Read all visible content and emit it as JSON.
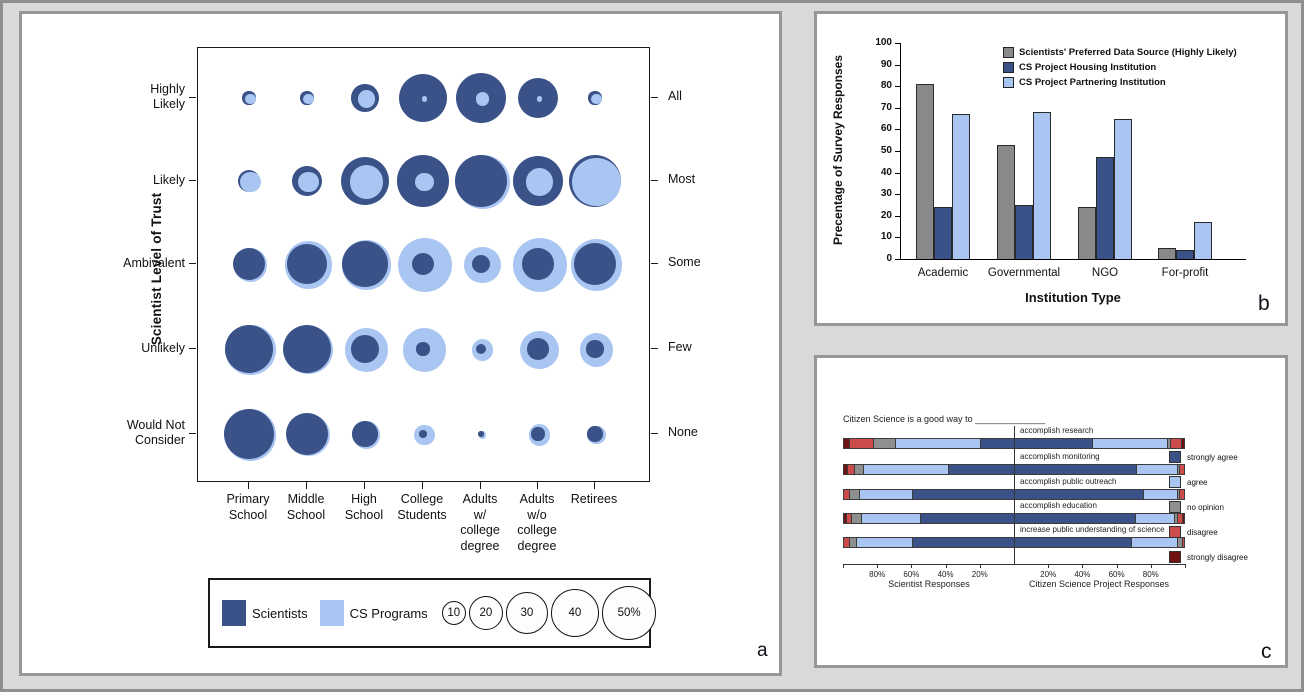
{
  "figure": {
    "background": "#d9d9d9",
    "frame_color": "#8f8f8f",
    "panel_border_color": "#979797",
    "panel_letters": {
      "a": "a",
      "b": "b",
      "c": "c"
    }
  },
  "chart_data": [
    {
      "id": "a",
      "type": "bubble",
      "ylabel": "Scientist Level of Trust",
      "x_categories": [
        "Primary School",
        "Middle School",
        "High School",
        "College Students",
        "Adults w/ college degree",
        "Adults w/o college degree",
        "Retirees"
      ],
      "x_category_lines": [
        [
          "Primary",
          "School"
        ],
        [
          "Middle",
          "School"
        ],
        [
          "High",
          "School"
        ],
        [
          "College",
          "Students"
        ],
        [
          "Adults",
          "w/",
          "college",
          "degree"
        ],
        [
          "Adults",
          "w/o",
          "college",
          "degree"
        ],
        [
          "Retirees"
        ]
      ],
      "y_categories": [
        "Highly Likely",
        "Likely",
        "Ambivalent",
        "Unlikely",
        "Would Not Consider"
      ],
      "y_category_lines": [
        [
          "Highly",
          "Likely"
        ],
        [
          "Likely"
        ],
        [
          "Ambivalent"
        ],
        [
          "Unlikely"
        ],
        [
          "Would Not",
          "Consider"
        ]
      ],
      "y_categories_right": [
        "All",
        "Most",
        "Some",
        "Few",
        "None"
      ],
      "bubble_size_unit": "percent",
      "size_legend": [
        {
          "label": "10",
          "value": 10
        },
        {
          "label": "20",
          "value": 20
        },
        {
          "label": "30",
          "value": 30
        },
        {
          "label": "40",
          "value": 40
        },
        {
          "label": "50%",
          "value": 50
        }
      ],
      "series": [
        {
          "name": "Scientists",
          "color": "#3A5288",
          "values": [
            [
              3,
              3,
              13,
              40,
              43,
              28,
              3
            ],
            [
              9,
              16,
              40,
              45,
              47,
              44,
              48
            ],
            [
              18,
              27,
              36,
              9,
              6,
              17,
              30
            ],
            [
              41,
              40,
              13,
              3,
              2,
              8,
              5
            ],
            [
              43,
              30,
              11,
              1,
              0.5,
              3,
              4
            ]
          ]
        },
        {
          "name": "CS Programs",
          "color": "#A9C5F1",
          "values": [
            [
              2,
              2,
              5,
              0.5,
              3,
              0.5,
              2
            ],
            [
              7,
              7,
              19,
              6,
              50,
              13,
              40
            ],
            [
              19,
              38,
              42,
              50,
              23,
              50,
              45
            ],
            [
              43,
              41,
              32,
              32,
              8,
              26,
              19
            ],
            [
              45,
              31,
              13,
              7,
              1,
              8,
              6
            ]
          ]
        }
      ]
    },
    {
      "id": "b",
      "type": "bar",
      "categories": [
        "Academic",
        "Governmental",
        "NGO",
        "For-profit"
      ],
      "series": [
        {
          "name": "Scientists' Preferred Data Source (Highly Likely)",
          "color": "#898989",
          "values": [
            81,
            53,
            24,
            5
          ]
        },
        {
          "name": "CS Project Housing Institution",
          "color": "#3A5288",
          "values": [
            24,
            25,
            47,
            4
          ]
        },
        {
          "name": "CS Project Partnering Institution",
          "color": "#A9C5F1",
          "values": [
            67,
            68,
            65,
            17
          ]
        }
      ],
      "xlabel": "Institution Type",
      "ylabel": "Precentage of Survey Responses",
      "ylim": [
        0,
        100
      ],
      "ytick_step": 10,
      "legend_position": "top-right-inside",
      "grid": "off"
    },
    {
      "id": "c",
      "type": "diverging-stacked-bar",
      "title": "Citizen Science is a good way to ______________",
      "statements": [
        "accomplish research",
        "accomplish monitoring",
        "accomplish public outreach",
        "accomplish education",
        "increase public understanding of science"
      ],
      "left_group_label": "Scientist Responses",
      "right_group_label": "Citizen Science Project Responses",
      "axis_ticks_left": [
        "80%",
        "60%",
        "40%",
        "20%"
      ],
      "axis_ticks_right": [
        "20%",
        "40%",
        "60%",
        "80%"
      ],
      "levels": [
        {
          "key": "strongly_agree",
          "name": "strongly agree",
          "color": "#3A5288"
        },
        {
          "key": "agree",
          "name": "agree",
          "color": "#A9C5F1"
        },
        {
          "key": "no_opinion",
          "name": "no opinion",
          "color": "#8F8F8F"
        },
        {
          "key": "disagree",
          "name": "disagree",
          "color": "#CC4B4B"
        },
        {
          "key": "strongly_disagree",
          "name": "strongly disagree",
          "color": "#701112"
        }
      ],
      "scientist_responses": [
        {
          "strongly_agree": 20,
          "agree": 50,
          "no_opinion": 13,
          "disagree": 14,
          "strongly_disagree": 3
        },
        {
          "strongly_agree": 39,
          "agree": 50,
          "no_opinion": 5,
          "disagree": 4,
          "strongly_disagree": 2
        },
        {
          "strongly_agree": 60,
          "agree": 31,
          "no_opinion": 6,
          "disagree": 3,
          "strongly_disagree": 0
        },
        {
          "strongly_agree": 55,
          "agree": 35,
          "no_opinion": 6,
          "disagree": 3,
          "strongly_disagree": 1
        },
        {
          "strongly_agree": 60,
          "agree": 33,
          "no_opinion": 4,
          "disagree": 3,
          "strongly_disagree": 0
        }
      ],
      "cs_project_responses": [
        {
          "strongly_agree": 46,
          "agree": 44,
          "no_opinion": 2,
          "disagree": 6,
          "strongly_disagree": 2
        },
        {
          "strongly_agree": 72,
          "agree": 24,
          "no_opinion": 1,
          "disagree": 3,
          "strongly_disagree": 0
        },
        {
          "strongly_agree": 76,
          "agree": 20,
          "no_opinion": 1,
          "disagree": 3,
          "strongly_disagree": 0
        },
        {
          "strongly_agree": 71,
          "agree": 23,
          "no_opinion": 2,
          "disagree": 3,
          "strongly_disagree": 1
        },
        {
          "strongly_agree": 69,
          "agree": 27,
          "no_opinion": 3,
          "disagree": 1,
          "strongly_disagree": 0
        }
      ]
    }
  ]
}
